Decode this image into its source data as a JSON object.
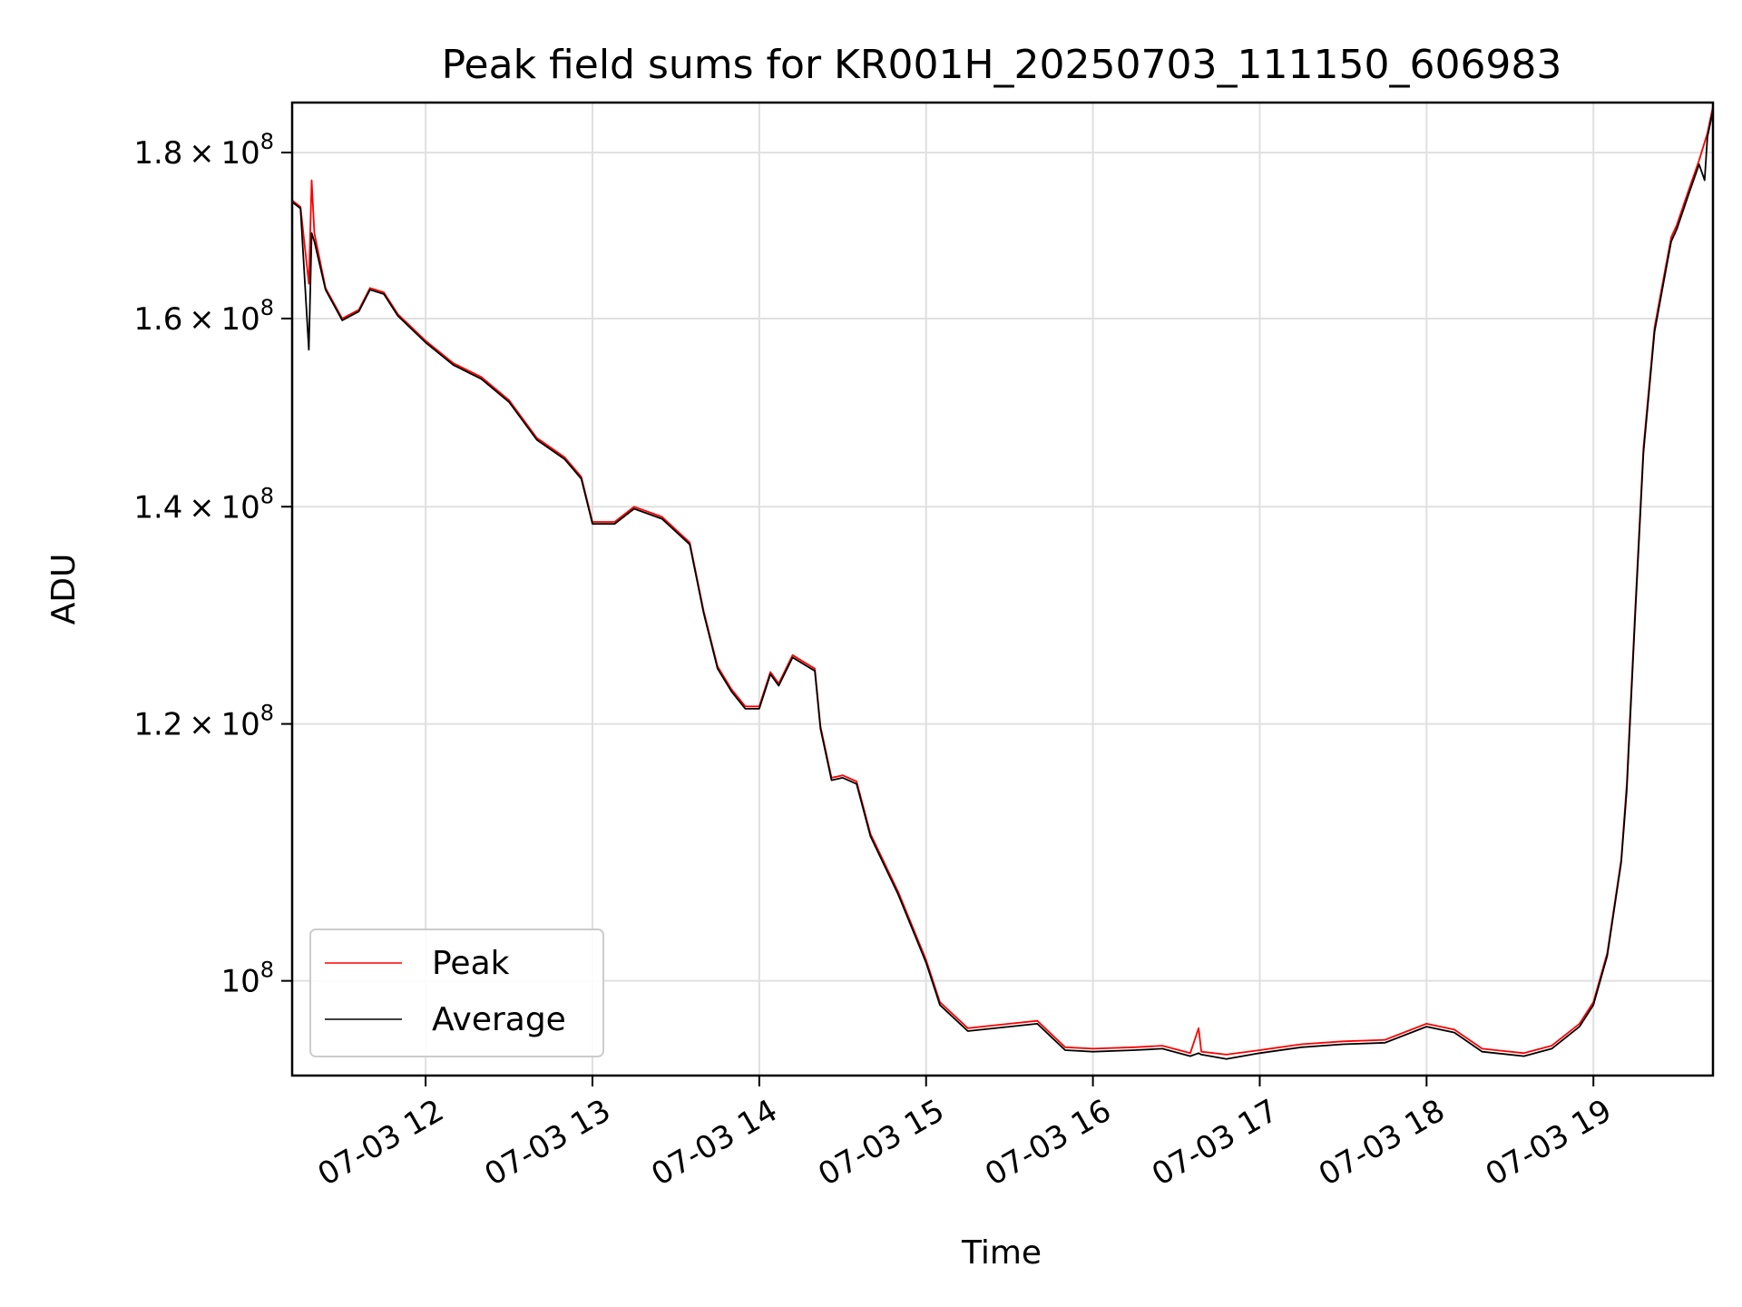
{
  "chart_data": {
    "type": "line",
    "title": "Peak field sums for KR001H_20250703_111150_606983",
    "xlabel": "Time",
    "ylabel": "ADU",
    "yscale": "log",
    "grid": true,
    "legend_position": "lower-left",
    "xlim": [
      "07-03 11:12",
      "07-03 19:43"
    ],
    "ylim": [
      93500000,
      186500000
    ],
    "x_ticks": [
      {
        "value": "07-03 12:00",
        "label": "07-03 12"
      },
      {
        "value": "07-03 13:00",
        "label": "07-03 13"
      },
      {
        "value": "07-03 14:00",
        "label": "07-03 14"
      },
      {
        "value": "07-03 15:00",
        "label": "07-03 15"
      },
      {
        "value": "07-03 16:00",
        "label": "07-03 16"
      },
      {
        "value": "07-03 17:00",
        "label": "07-03 17"
      },
      {
        "value": "07-03 18:00",
        "label": "07-03 18"
      },
      {
        "value": "07-03 19:00",
        "label": "07-03 19"
      }
    ],
    "y_ticks": [
      {
        "value": 100000000,
        "mant": "",
        "exp": "8"
      },
      {
        "value": 120000000,
        "mant": "1.2",
        "exp": "8"
      },
      {
        "value": 140000000,
        "mant": "1.4",
        "exp": "8"
      },
      {
        "value": 160000000,
        "mant": "1.6",
        "exp": "8"
      },
      {
        "value": 180000000,
        "mant": "1.8",
        "exp": "8"
      }
    ],
    "series": [
      {
        "name": "Peak",
        "color": "#ff0000",
        "points": [
          [
            "07-03 11:12",
            174000000
          ],
          [
            "07-03 11:15",
            173200000
          ],
          [
            "07-03 11:18",
            164000000
          ],
          [
            "07-03 11:19",
            176500000
          ],
          [
            "07-03 11:20",
            170000000
          ],
          [
            "07-03 11:24",
            163500000
          ],
          [
            "07-03 11:30",
            160000000
          ],
          [
            "07-03 11:36",
            161000000
          ],
          [
            "07-03 11:40",
            163500000
          ],
          [
            "07-03 11:45",
            163000000
          ],
          [
            "07-03 11:50",
            160500000
          ],
          [
            "07-03 12:00",
            157500000
          ],
          [
            "07-03 12:10",
            155000000
          ],
          [
            "07-03 12:20",
            153500000
          ],
          [
            "07-03 12:30",
            151000000
          ],
          [
            "07-03 12:40",
            147000000
          ],
          [
            "07-03 12:50",
            145000000
          ],
          [
            "07-03 12:56",
            143000000
          ],
          [
            "07-03 13:00",
            138500000
          ],
          [
            "07-03 13:08",
            138500000
          ],
          [
            "07-03 13:15",
            140000000
          ],
          [
            "07-03 13:25",
            139000000
          ],
          [
            "07-03 13:35",
            136500000
          ],
          [
            "07-03 13:40",
            130000000
          ],
          [
            "07-03 13:45",
            125000000
          ],
          [
            "07-03 13:50",
            123000000
          ],
          [
            "07-03 13:55",
            121500000
          ],
          [
            "07-03 14:00",
            121500000
          ],
          [
            "07-03 14:04",
            124500000
          ],
          [
            "07-03 14:07",
            123500000
          ],
          [
            "07-03 14:12",
            126000000
          ],
          [
            "07-03 14:20",
            124800000
          ],
          [
            "07-03 14:22",
            119800000
          ],
          [
            "07-03 14:26",
            115500000
          ],
          [
            "07-03 14:30",
            115700000
          ],
          [
            "07-03 14:35",
            115200000
          ],
          [
            "07-03 14:40",
            111000000
          ],
          [
            "07-03 14:50",
            106500000
          ],
          [
            "07-03 15:00",
            101500000
          ],
          [
            "07-03 15:05",
            98500000
          ],
          [
            "07-03 15:15",
            96700000
          ],
          [
            "07-03 15:30",
            97000000
          ],
          [
            "07-03 15:40",
            97200000
          ],
          [
            "07-03 15:50",
            95400000
          ],
          [
            "07-03 16:00",
            95300000
          ],
          [
            "07-03 16:15",
            95400000
          ],
          [
            "07-03 16:25",
            95500000
          ],
          [
            "07-03 16:35",
            95000000
          ],
          [
            "07-03 16:38",
            96700000
          ],
          [
            "07-03 16:39",
            95100000
          ],
          [
            "07-03 16:48",
            94900000
          ],
          [
            "07-03 17:00",
            95200000
          ],
          [
            "07-03 17:15",
            95600000
          ],
          [
            "07-03 17:30",
            95800000
          ],
          [
            "07-03 17:45",
            95900000
          ],
          [
            "07-03 18:00",
            97000000
          ],
          [
            "07-03 18:10",
            96600000
          ],
          [
            "07-03 18:20",
            95300000
          ],
          [
            "07-03 18:35",
            95000000
          ],
          [
            "07-03 18:45",
            95500000
          ],
          [
            "07-03 18:55",
            97000000
          ],
          [
            "07-03 19:00",
            98500000
          ],
          [
            "07-03 19:05",
            102000000
          ],
          [
            "07-03 19:10",
            109000000
          ],
          [
            "07-03 19:12",
            115000000
          ],
          [
            "07-03 19:15",
            130000000
          ],
          [
            "07-03 19:18",
            146000000
          ],
          [
            "07-03 19:22",
            159000000
          ],
          [
            "07-03 19:26",
            166000000
          ],
          [
            "07-03 19:28",
            169500000
          ],
          [
            "07-03 19:30",
            171000000
          ],
          [
            "07-03 19:34",
            175000000
          ],
          [
            "07-03 19:38",
            179000000
          ],
          [
            "07-03 19:41",
            182500000
          ],
          [
            "07-03 19:43",
            186000000
          ]
        ]
      },
      {
        "name": "Average",
        "color": "#000000",
        "points": [
          [
            "07-03 11:12",
            173800000
          ],
          [
            "07-03 11:15",
            173000000
          ],
          [
            "07-03 11:18",
            156500000
          ],
          [
            "07-03 11:19",
            170000000
          ],
          [
            "07-03 11:20",
            169000000
          ],
          [
            "07-03 11:24",
            163300000
          ],
          [
            "07-03 11:30",
            159800000
          ],
          [
            "07-03 11:36",
            160800000
          ],
          [
            "07-03 11:40",
            163300000
          ],
          [
            "07-03 11:45",
            162800000
          ],
          [
            "07-03 11:50",
            160300000
          ],
          [
            "07-03 12:00",
            157300000
          ],
          [
            "07-03 12:10",
            154800000
          ],
          [
            "07-03 12:20",
            153300000
          ],
          [
            "07-03 12:30",
            150800000
          ],
          [
            "07-03 12:40",
            146800000
          ],
          [
            "07-03 12:50",
            144800000
          ],
          [
            "07-03 12:56",
            142800000
          ],
          [
            "07-03 13:00",
            138300000
          ],
          [
            "07-03 13:08",
            138300000
          ],
          [
            "07-03 13:15",
            139800000
          ],
          [
            "07-03 13:25",
            138800000
          ],
          [
            "07-03 13:35",
            136300000
          ],
          [
            "07-03 13:40",
            129800000
          ],
          [
            "07-03 13:45",
            124800000
          ],
          [
            "07-03 13:50",
            122800000
          ],
          [
            "07-03 13:55",
            121300000
          ],
          [
            "07-03 14:00",
            121300000
          ],
          [
            "07-03 14:04",
            124300000
          ],
          [
            "07-03 14:07",
            123300000
          ],
          [
            "07-03 14:12",
            125800000
          ],
          [
            "07-03 14:20",
            124600000
          ],
          [
            "07-03 14:22",
            119600000
          ],
          [
            "07-03 14:26",
            115300000
          ],
          [
            "07-03 14:30",
            115500000
          ],
          [
            "07-03 14:35",
            115000000
          ],
          [
            "07-03 14:40",
            110800000
          ],
          [
            "07-03 14:50",
            106300000
          ],
          [
            "07-03 15:00",
            101300000
          ],
          [
            "07-03 15:05",
            98300000
          ],
          [
            "07-03 15:15",
            96500000
          ],
          [
            "07-03 15:30",
            96800000
          ],
          [
            "07-03 15:40",
            97000000
          ],
          [
            "07-03 15:50",
            95200000
          ],
          [
            "07-03 16:00",
            95100000
          ],
          [
            "07-03 16:15",
            95200000
          ],
          [
            "07-03 16:25",
            95300000
          ],
          [
            "07-03 16:35",
            94800000
          ],
          [
            "07-03 16:38",
            95000000
          ],
          [
            "07-03 16:39",
            94900000
          ],
          [
            "07-03 16:48",
            94600000
          ],
          [
            "07-03 17:00",
            95000000
          ],
          [
            "07-03 17:15",
            95400000
          ],
          [
            "07-03 17:30",
            95600000
          ],
          [
            "07-03 17:45",
            95700000
          ],
          [
            "07-03 18:00",
            96800000
          ],
          [
            "07-03 18:10",
            96400000
          ],
          [
            "07-03 18:20",
            95100000
          ],
          [
            "07-03 18:35",
            94800000
          ],
          [
            "07-03 18:45",
            95300000
          ],
          [
            "07-03 18:55",
            96800000
          ],
          [
            "07-03 19:00",
            98300000
          ],
          [
            "07-03 19:05",
            101800000
          ],
          [
            "07-03 19:10",
            108800000
          ],
          [
            "07-03 19:12",
            114500000
          ],
          [
            "07-03 19:15",
            129500000
          ],
          [
            "07-03 19:18",
            145500000
          ],
          [
            "07-03 19:22",
            158500000
          ],
          [
            "07-03 19:26",
            165500000
          ],
          [
            "07-03 19:28",
            169000000
          ],
          [
            "07-03 19:30",
            170500000
          ],
          [
            "07-03 19:34",
            174500000
          ],
          [
            "07-03 19:38",
            178500000
          ],
          [
            "07-03 19:40",
            176500000
          ],
          [
            "07-03 19:41",
            182000000
          ],
          [
            "07-03 19:43",
            185500000
          ]
        ]
      }
    ]
  }
}
